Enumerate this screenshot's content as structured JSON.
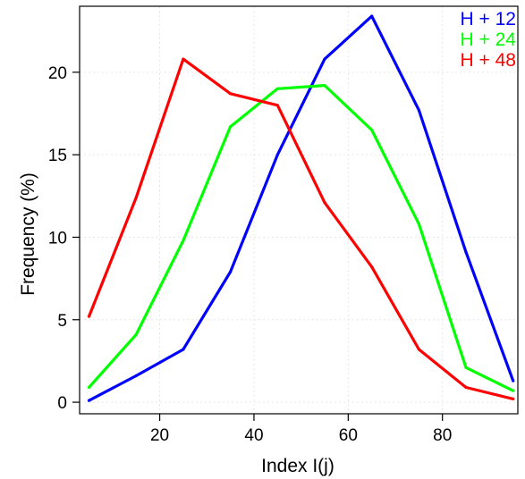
{
  "chart_data": {
    "type": "line",
    "xlabel": "Index I(j)",
    "ylabel": "Frequency (%)",
    "xlim": [
      3,
      96
    ],
    "ylim": [
      -0.7,
      24
    ],
    "x_ticks": [
      20,
      40,
      60,
      80
    ],
    "y_ticks": [
      0,
      5,
      10,
      15,
      20
    ],
    "grid": true,
    "legend_position": "top-right",
    "x": [
      5,
      15,
      25,
      35,
      45,
      55,
      65,
      75,
      85,
      95
    ],
    "series": [
      {
        "name": "H + 12",
        "color": "#0000ff",
        "values": [
          0.1,
          1.6,
          3.2,
          7.9,
          15.0,
          20.8,
          23.4,
          17.7,
          9.1,
          1.3
        ]
      },
      {
        "name": "H + 24",
        "color": "#00ff00",
        "values": [
          0.9,
          4.1,
          9.8,
          16.7,
          19.0,
          19.2,
          16.5,
          10.8,
          2.1,
          0.7
        ]
      },
      {
        "name": "H + 48",
        "color": "#ff0000",
        "values": [
          5.2,
          12.4,
          20.8,
          18.7,
          18.0,
          12.1,
          8.2,
          3.2,
          0.9,
          0.2
        ]
      }
    ]
  }
}
